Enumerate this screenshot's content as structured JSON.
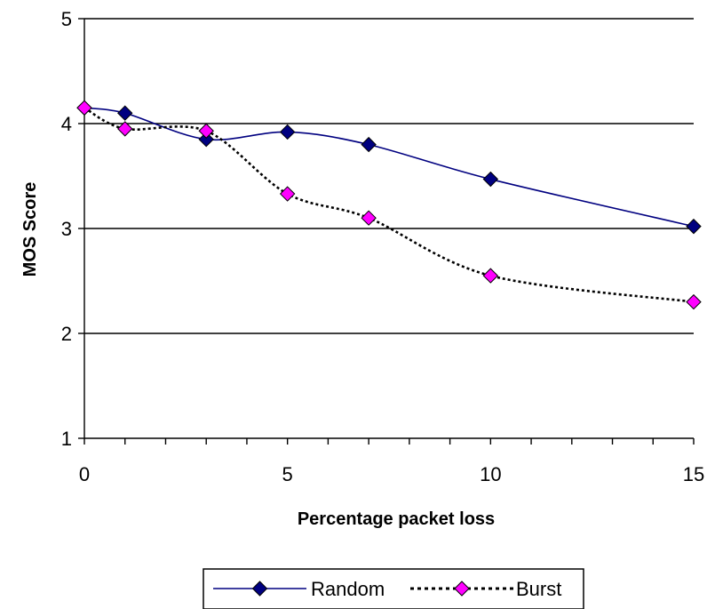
{
  "chart_data": {
    "type": "line",
    "title": "",
    "xlabel": "Percentage packet loss",
    "ylabel": "MOS Score",
    "xlim": [
      0,
      15
    ],
    "ylim": [
      1,
      5
    ],
    "xticks": [
      0,
      5,
      10,
      15
    ],
    "yticks": [
      1,
      2,
      3,
      4,
      5
    ],
    "grid": "horizontal",
    "legend_position": "bottom",
    "series": [
      {
        "name": "Random",
        "color": "#000080",
        "marker_color": "#000080",
        "line_style": "solid",
        "smooth": true,
        "x": [
          0,
          1,
          3,
          5,
          7,
          10,
          15
        ],
        "y": [
          4.15,
          4.1,
          3.85,
          3.92,
          3.8,
          3.47,
          3.02
        ]
      },
      {
        "name": "Burst",
        "color": "#000000",
        "marker_color": "#ff00ff",
        "line_style": "dotted",
        "smooth": true,
        "x": [
          0,
          1,
          3,
          5,
          7,
          10,
          15
        ],
        "y": [
          4.15,
          3.95,
          3.93,
          3.33,
          3.1,
          2.55,
          2.3
        ]
      }
    ]
  }
}
